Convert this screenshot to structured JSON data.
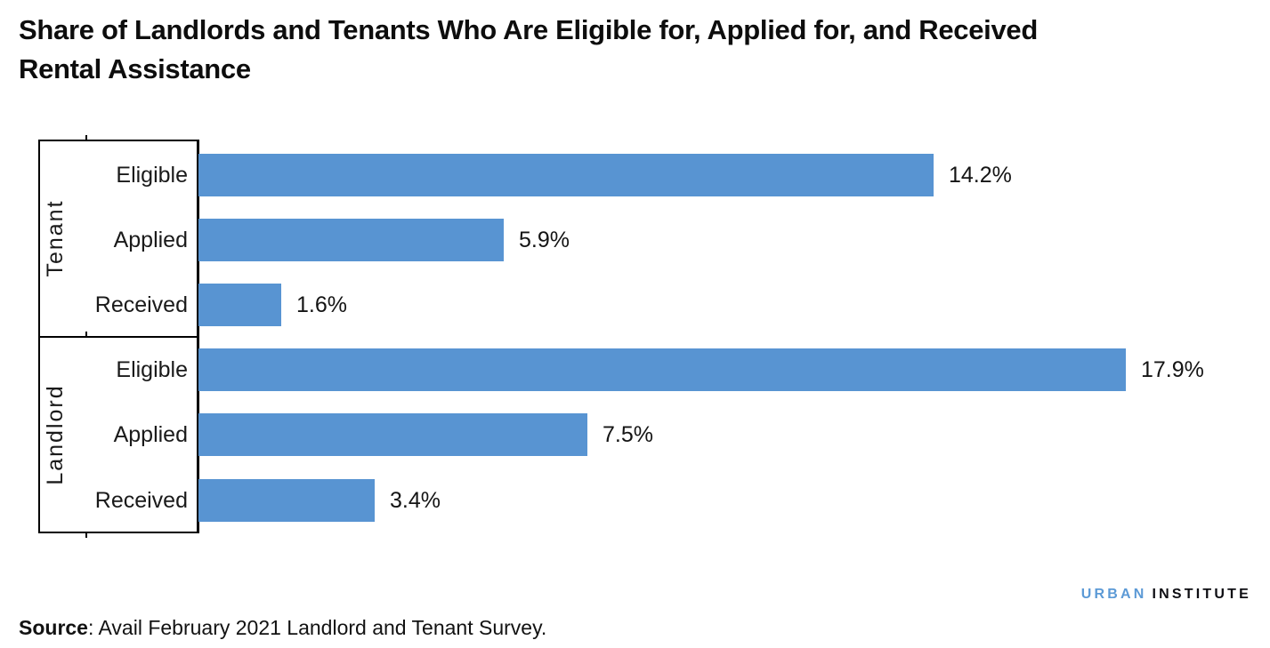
{
  "title_lines": [
    "Share of Landlords and Tenants Who Are Eligible for, Applied for, and Received",
    "Rental Assistance"
  ],
  "source": {
    "label": "Source",
    "text": ": Avail February 2021 Landlord and Tenant Survey."
  },
  "logo": {
    "part1": "URBAN",
    "part2": "INSTITUTE"
  },
  "colors": {
    "bar": "#5894D2",
    "logo_blue": "#5C9AD6",
    "axis": "#000000"
  },
  "chart_data": {
    "type": "bar",
    "orientation": "horizontal",
    "title": "Share of Landlords and Tenants Who Are Eligible for, Applied for, and Received Rental Assistance",
    "unit": "%",
    "xlim": [
      0,
      20
    ],
    "grid": false,
    "legend": "none",
    "groups": [
      {
        "label": "Tenant",
        "categories": [
          "Eligible",
          "Applied",
          "Received"
        ],
        "values": [
          14.2,
          5.9,
          1.6
        ],
        "labels": [
          "14.2%",
          "5.9%",
          "1.6%"
        ]
      },
      {
        "label": "Landlord",
        "categories": [
          "Eligible",
          "Applied",
          "Received"
        ],
        "values": [
          17.9,
          7.5,
          3.4
        ],
        "labels": [
          "17.9%",
          "7.5%",
          "3.4%"
        ]
      }
    ]
  }
}
